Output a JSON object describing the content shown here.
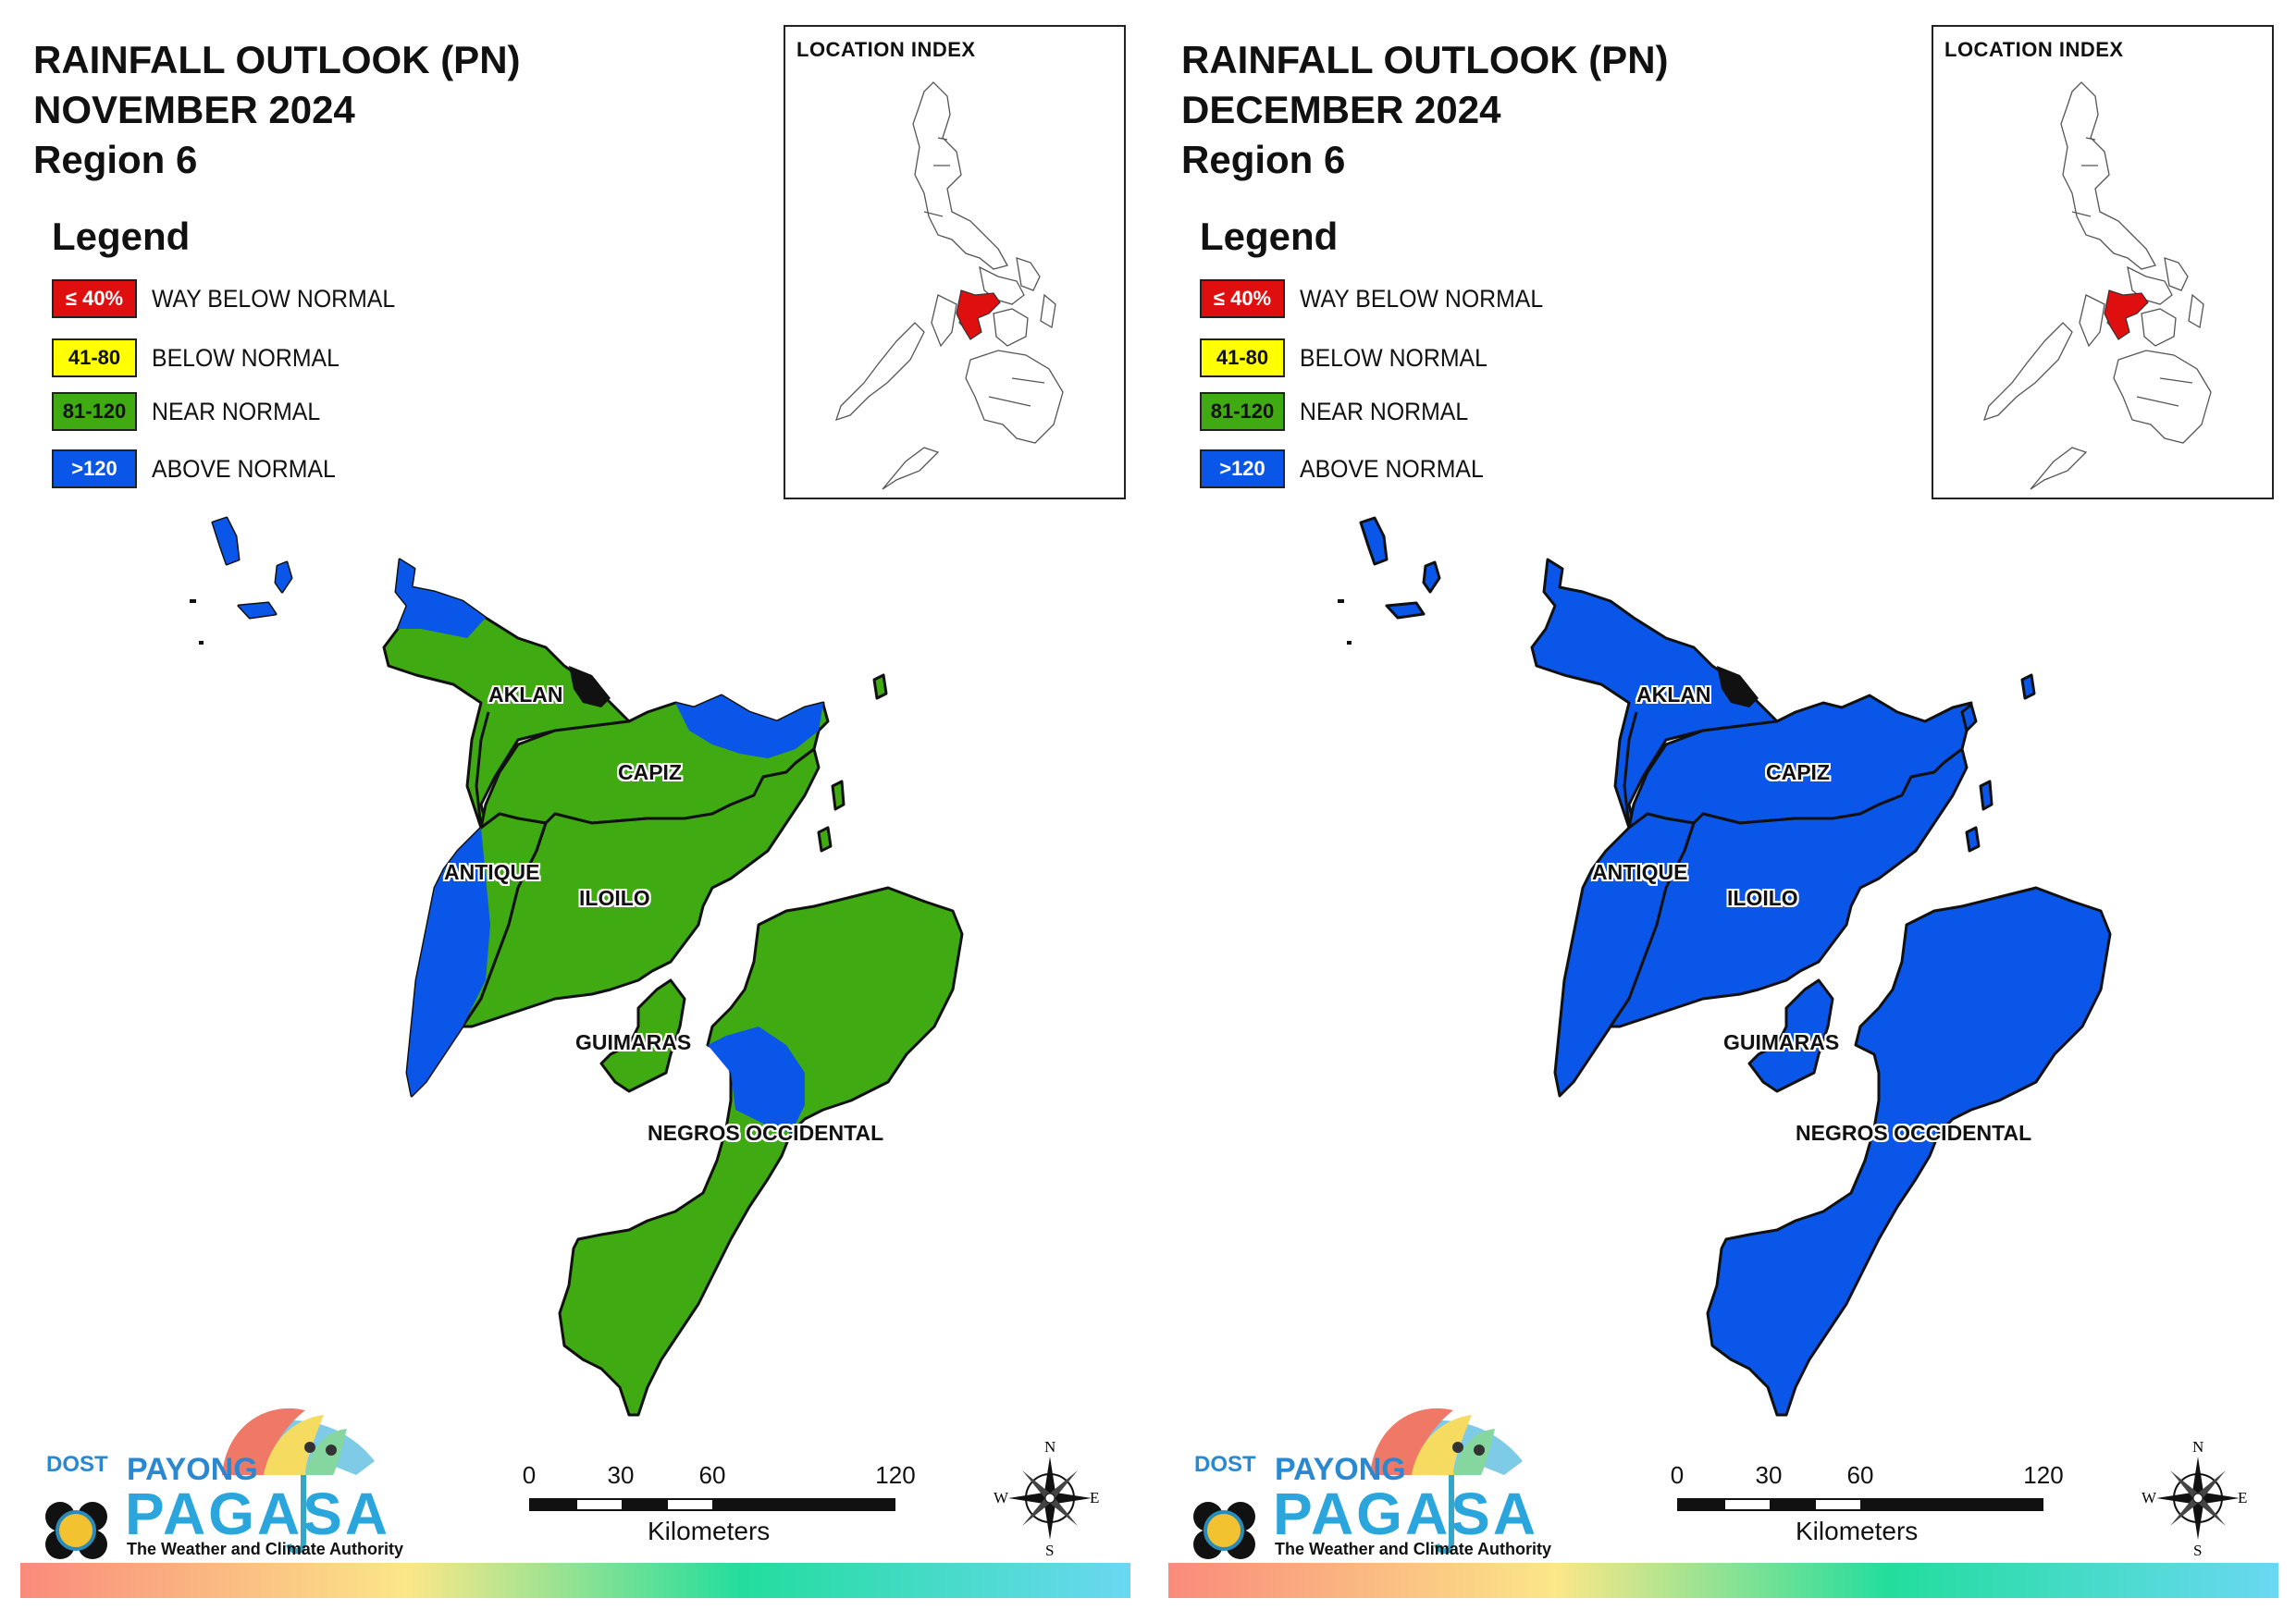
{
  "panels": [
    {
      "title_line1": "RAINFALL OUTLOOK (PN)",
      "title_line2": "NOVEMBER 2024",
      "title_line3": "Region 6",
      "province_colors": {
        "aklan": "#3faa12",
        "capiz": "#3faa12",
        "antique": "#3faa12",
        "iloilo": "#3faa12",
        "guimaras": "#3faa12",
        "negros": "#3faa12"
      },
      "above_normal_areas": [
        "northwest tip of Aklan/Antique",
        "northeast tip of Capiz",
        "southwest coast of Antique",
        "northwest Negros Occidental",
        "Caluya islands"
      ]
    },
    {
      "title_line1": "RAINFALL OUTLOOK (PN)",
      "title_line2": "DECEMBER 2024",
      "title_line3": "Region 6",
      "province_colors": {
        "aklan": "#0a56e8",
        "capiz": "#0a56e8",
        "antique": "#0a56e8",
        "iloilo": "#0a56e8",
        "guimaras": "#0a56e8",
        "negros": "#0a56e8"
      },
      "above_normal_areas": [
        "entire region"
      ]
    }
  ],
  "legend": {
    "title": "Legend",
    "items": [
      {
        "swatch": "≤ 40%",
        "label": "WAY BELOW NORMAL",
        "color": "#e00f0f"
      },
      {
        "swatch": "41-80",
        "label": "BELOW NORMAL",
        "color": "#ffff00"
      },
      {
        "swatch": "81-120",
        "label": "NEAR NORMAL",
        "color": "#3faa12"
      },
      {
        "swatch": ">120",
        "label": "ABOVE NORMAL",
        "color": "#0a56e8"
      }
    ]
  },
  "inset": {
    "title": "LOCATION INDEX",
    "highlight_color": "#e00f0f"
  },
  "province_labels": {
    "aklan": "AKLAN",
    "capiz": "CAPIZ",
    "antique": "ANTIQUE",
    "iloilo": "ILOILO",
    "guimaras": "GUIMARAS",
    "negros": "NEGROS OCCIDENTAL"
  },
  "scale_bar": {
    "ticks": [
      "0",
      "30",
      "60",
      "120"
    ],
    "unit": "Kilometers"
  },
  "compass": {
    "n": "N",
    "s": "S",
    "e": "E",
    "w": "W"
  },
  "logo": {
    "dost": "DOST",
    "payong": "PAYONG",
    "pagasa": "PAGASA",
    "tagline": "The Weather and Climate Authority"
  },
  "colors": {
    "near_normal": "#3faa12",
    "above_normal": "#0a56e8",
    "outline": "#111111"
  }
}
